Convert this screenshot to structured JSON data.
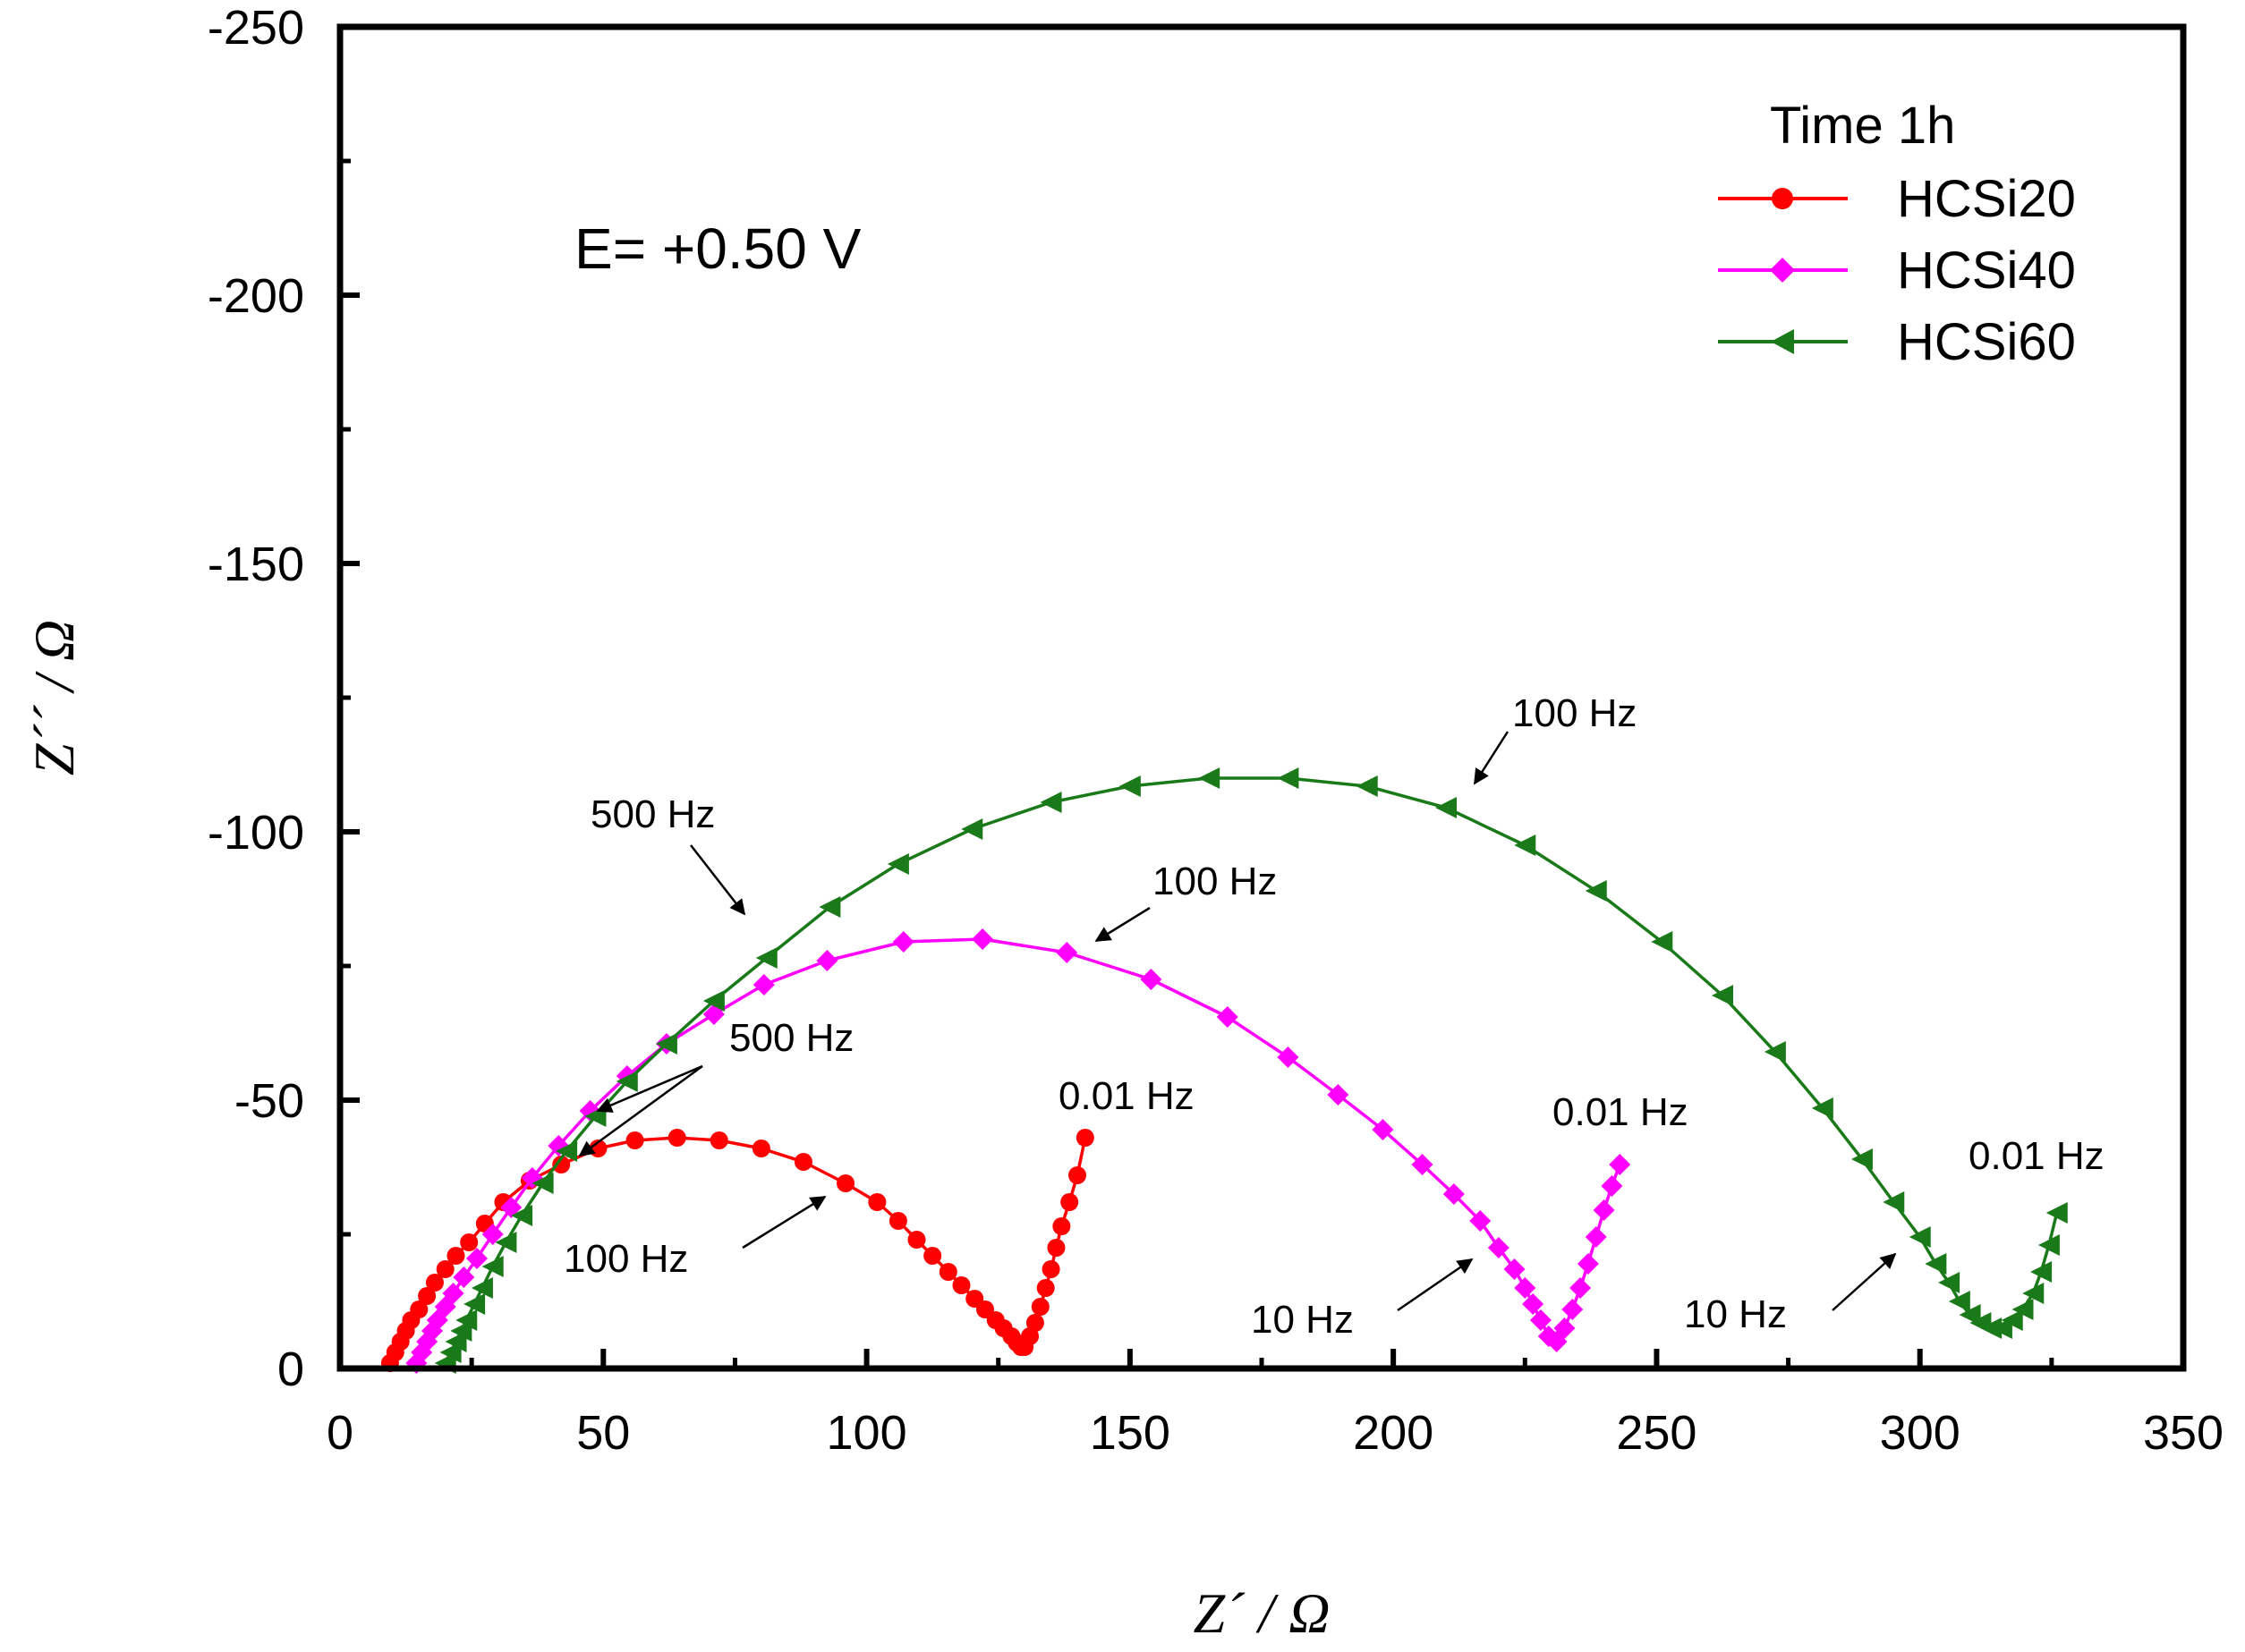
{
  "chart_data": {
    "type": "scatter",
    "title": "",
    "xlabel": "Z´ / Ω",
    "ylabel": "Z´´ / Ω",
    "xlim": [
      0,
      350
    ],
    "ylim": [
      0,
      -250
    ],
    "x_ticks": [
      0,
      50,
      100,
      150,
      200,
      250,
      300,
      350
    ],
    "y_ticks": [
      0,
      -50,
      -100,
      -150,
      -200,
      -250
    ],
    "x_tick_labels": [
      "0",
      "50",
      "100",
      "150",
      "200",
      "250",
      "300",
      "350"
    ],
    "y_tick_labels": [
      "0",
      "-50",
      "-100",
      "-150",
      "-200",
      "-250"
    ],
    "condition_label": "E= +0.50 V",
    "legend_title": "Time 1h",
    "legend_position": "top-right",
    "colors": {
      "HCSi20": "#ff0000",
      "HCSi40": "#ff00ff",
      "HCSi60": "#1a7a1a"
    },
    "series": [
      {
        "name": "HCSi20",
        "marker": "circle",
        "x": [
          9.5,
          10.5,
          11.5,
          12.5,
          13.5,
          15,
          16.5,
          18,
          20,
          22,
          24.5,
          27.5,
          31,
          36,
          42,
          49,
          56,
          64,
          72,
          80,
          88,
          96,
          102,
          106,
          109.5,
          112.5,
          115.5,
          118,
          120.5,
          122.5,
          124.5,
          126,
          127.5,
          128.5,
          129.3,
          130,
          131,
          132,
          133,
          134,
          135,
          136,
          137,
          138.5,
          140,
          141.5
        ],
        "y": [
          -1,
          -3,
          -5,
          -7,
          -9,
          -11,
          -13.5,
          -16,
          -18.5,
          -21,
          -23.5,
          -27,
          -31,
          -35,
          -38,
          -41,
          -42.5,
          -43,
          -42.5,
          -41,
          -38.5,
          -34.5,
          -31,
          -27.5,
          -24,
          -21,
          -18,
          -15.5,
          -13,
          -11,
          -9,
          -7.5,
          -6,
          -4.8,
          -4,
          -4,
          -6,
          -8.5,
          -11.5,
          -15,
          -18.5,
          -22.5,
          -26.5,
          -31,
          -36,
          -43
        ]
      },
      {
        "name": "HCSi40",
        "marker": "diamond",
        "x": [
          14.5,
          15.5,
          16.5,
          17.5,
          18.5,
          20,
          21.5,
          23.5,
          26,
          29,
          32.5,
          36.5,
          41.5,
          47.5,
          54.5,
          62,
          71,
          80.5,
          92.5,
          107,
          122,
          138,
          154,
          168.5,
          180,
          189.5,
          198,
          205.5,
          211.5,
          216.5,
          220,
          223,
          225,
          226.5,
          228,
          229.5,
          231,
          232.5,
          234,
          235.5,
          237,
          238.5,
          240,
          241.5,
          243
        ],
        "y": [
          -1,
          -3,
          -5,
          -7,
          -9,
          -11.5,
          -14,
          -17,
          -20.5,
          -25,
          -30,
          -35.5,
          -41.5,
          -48,
          -54.5,
          -60.5,
          -66,
          -71.5,
          -76,
          -79.5,
          -80,
          -77.5,
          -72.5,
          -65.5,
          -58,
          -51,
          -44.5,
          -38,
          -32.5,
          -27.5,
          -22.5,
          -18.5,
          -15,
          -12,
          -9,
          -6,
          -5,
          -7.5,
          -11,
          -15,
          -19.5,
          -24.5,
          -29.5,
          -34,
          -38
        ]
      },
      {
        "name": "HCSi60",
        "marker": "triangle-left",
        "x": [
          20,
          21,
          22,
          23,
          24,
          25.5,
          27,
          29,
          31.5,
          34.5,
          38.5,
          43,
          48.5,
          54.5,
          62,
          71,
          81,
          93,
          106,
          120,
          135,
          150,
          165,
          180,
          195,
          210,
          225,
          238.5,
          251,
          262.5,
          272.5,
          281.5,
          289,
          295,
          300,
          303,
          305.5,
          307.5,
          309.5,
          311.5,
          313.5,
          315.5,
          317.5,
          319.5,
          321.5,
          323,
          324.5,
          326
        ],
        "y": [
          -1,
          -3,
          -5,
          -7,
          -9,
          -12,
          -15,
          -19,
          -23.5,
          -28.5,
          -34.5,
          -40.5,
          -47,
          -53.5,
          -60.5,
          -68.5,
          -76.5,
          -86,
          -94,
          -100.5,
          -105.5,
          -108.5,
          -110,
          -110,
          -108.5,
          -104.5,
          -97.5,
          -89,
          -79.5,
          -69.5,
          -59,
          -48.5,
          -39,
          -31,
          -24.5,
          -19.5,
          -16,
          -12.5,
          -10,
          -8.5,
          -7.5,
          -7.5,
          -9,
          -11,
          -14,
          -18,
          -23,
          -29
        ]
      }
    ],
    "annotations": [
      {
        "label": "500 Hz",
        "series": "HCSi60"
      },
      {
        "label": "100 Hz",
        "series": "HCSi60"
      },
      {
        "label": "0.01 Hz",
        "series": "HCSi60"
      },
      {
        "label": "10 Hz",
        "series": "HCSi60"
      },
      {
        "label": "100 Hz",
        "series": "HCSi40"
      },
      {
        "label": "500 Hz",
        "series": "HCSi40/HCSi20"
      },
      {
        "label": "0.01 Hz",
        "series": "HCSi40"
      },
      {
        "label": "10 Hz",
        "series": "HCSi40"
      },
      {
        "label": "0.01 Hz",
        "series": "HCSi20"
      },
      {
        "label": "100 Hz",
        "series": "HCSi20"
      }
    ]
  }
}
